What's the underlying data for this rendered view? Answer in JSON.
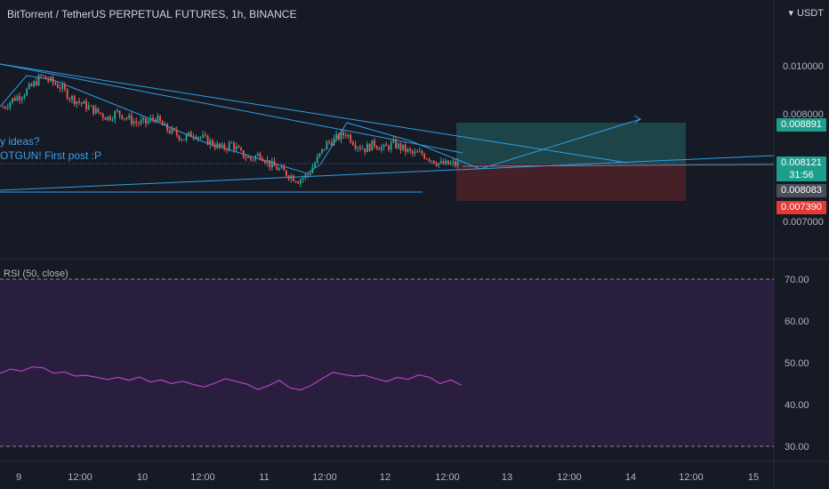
{
  "header": {
    "symbol": "BitTorrent / TetherUS PERPETUAL FUTURES",
    "interval": "1h",
    "exchange": "BINANCE"
  },
  "currency": "USDT",
  "annotations": [
    "y ideas?",
    "OTGUN! First post :P"
  ],
  "price_tags": {
    "target": "0.008891",
    "last": "0.008121",
    "countdown": "31:56",
    "entry": "0.008083",
    "stop": "0.007390"
  },
  "colors": {
    "background": "#161a25",
    "up": "#26a69a",
    "down": "#ef5350",
    "trendline": "#2e9fe6",
    "rsi": "#b044c8",
    "profit_zone": "#1e4c4f",
    "loss_zone": "#4a2228"
  },
  "chart_data": [
    {
      "type": "candlestick",
      "name": "price",
      "y_ticks": [
        "0.010000",
        "0.008000",
        "0.007000"
      ],
      "x_ticks": [
        "9",
        "12:00",
        "10",
        "12:00",
        "11",
        "12:00",
        "12",
        "12:00",
        "13",
        "12:00",
        "14",
        "12:00",
        "15"
      ],
      "drawn_levels": {
        "target": 0.008891,
        "last": 0.008121,
        "entry": 0.008083,
        "stop": 0.00739
      },
      "close_path": [
        0.0092,
        0.00935,
        0.00945,
        0.0096,
        0.0098,
        0.0097,
        0.0096,
        0.0094,
        0.0093,
        0.0092,
        0.0091,
        0.009,
        0.0091,
        0.009,
        0.0089,
        0.0089,
        0.009,
        0.0088,
        0.0087,
        0.0086,
        0.0087,
        0.0086,
        0.0085,
        0.0084,
        0.0085,
        0.0083,
        0.0082,
        0.0083,
        0.0081,
        0.008,
        0.0079,
        0.0078,
        0.0079,
        0.0082,
        0.0085,
        0.0086,
        0.0087,
        0.0085,
        0.0084,
        0.0085,
        0.0084,
        0.0085,
        0.0084,
        0.0083,
        0.0083,
        0.0082,
        0.0081,
        0.0081
      ]
    },
    {
      "type": "line",
      "name": "RSI (50, close)",
      "label": "RSI (50, close)",
      "y_ticks": [
        "70.00",
        "60.00",
        "50.00",
        "40.00",
        "30.00"
      ],
      "ylim": [
        27,
        73
      ],
      "bands": [
        30,
        70
      ],
      "values": [
        47.5,
        48.5,
        48.0,
        49.0,
        48.8,
        47.5,
        47.8,
        46.8,
        47.0,
        46.5,
        46.0,
        46.5,
        45.8,
        46.6,
        45.4,
        45.9,
        45.0,
        45.6,
        44.8,
        44.2,
        45.1,
        46.2,
        45.5,
        44.9,
        43.6,
        44.5,
        45.8,
        44.0,
        43.5,
        44.6,
        46.2,
        47.7,
        47.2,
        46.8,
        47.0,
        46.2,
        45.5,
        46.5,
        46.0,
        47.1,
        46.5,
        45.0,
        45.9,
        44.6
      ]
    }
  ]
}
